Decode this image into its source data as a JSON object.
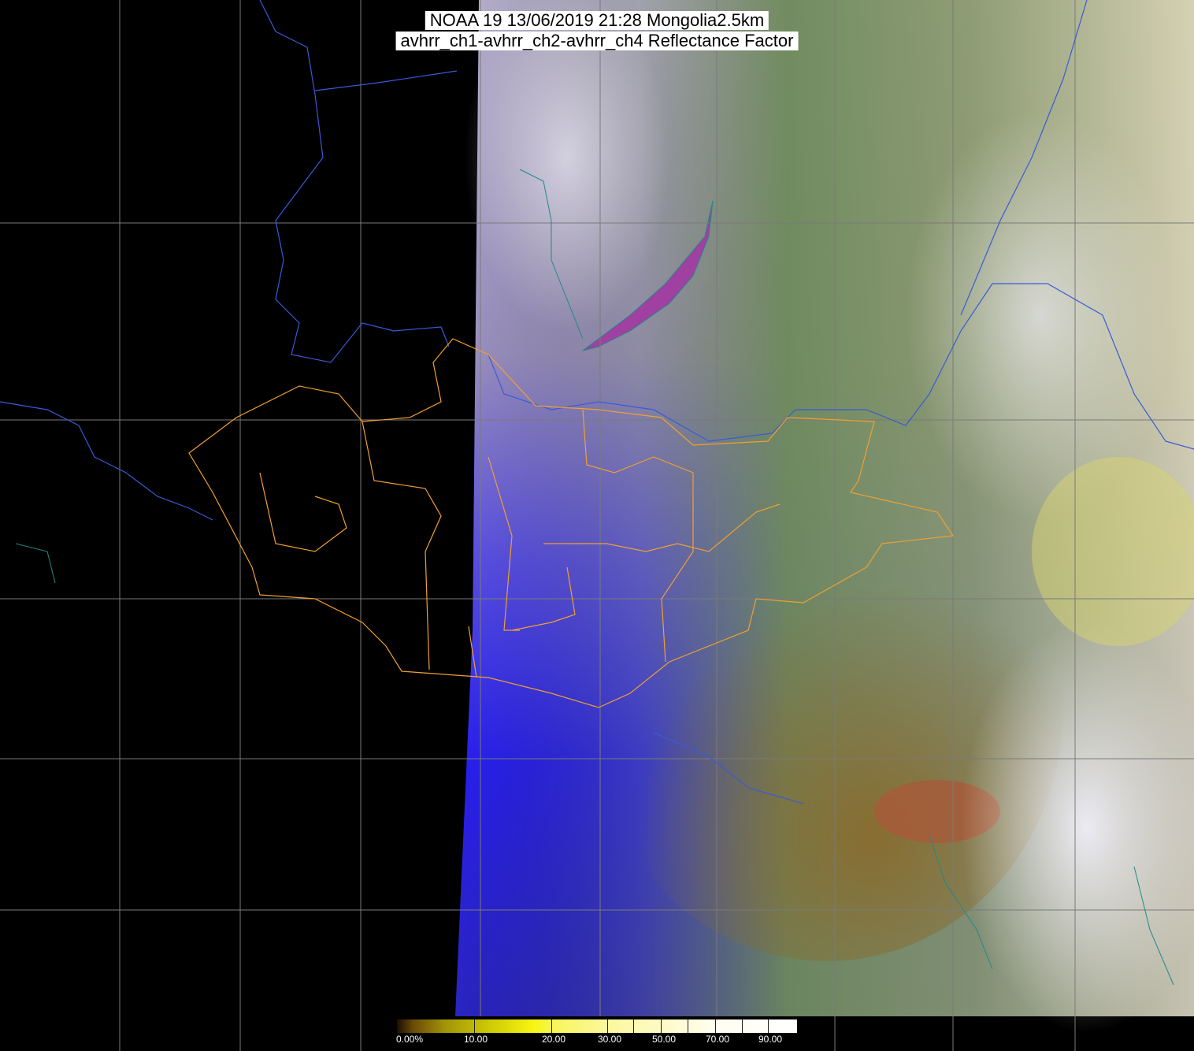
{
  "title": {
    "line1": "NOAA 19 13/06/2019 21:28 Mongolia2.5km",
    "line2": "avhrr_ch1-avhrr_ch2-avhrr_ch4 Reflectance Factor"
  },
  "colorbar": {
    "labels": [
      "0.00%",
      "10.00",
      "20.00",
      "30.00",
      "50.00",
      "70.00",
      "90.00"
    ],
    "range": [
      0,
      100
    ],
    "colors": [
      "#1a0e04",
      "#a29408",
      "#f6f410",
      "#fbf89a",
      "#ffffff"
    ]
  },
  "map": {
    "colors": {
      "no_data": "#000000",
      "grid": "#7a7a7a",
      "admin_borders": "#f0a030",
      "country_borders": "#3a5ad8",
      "coastline_rivers": "#1f8a8a",
      "lake_baikal": "#a040a0"
    }
  }
}
